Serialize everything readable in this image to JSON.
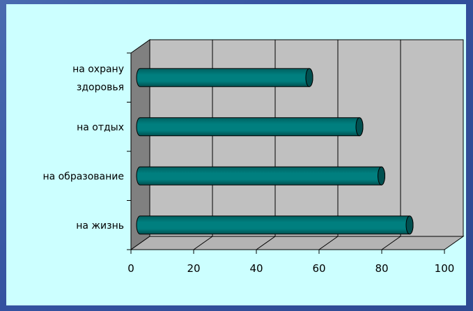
{
  "chart_data": {
    "type": "bar",
    "orientation": "horizontal",
    "style": "3d-cylinder",
    "categories": [
      [
        "на охрану",
        "здоровья"
      ],
      [
        "на отдых"
      ],
      [
        "на образование"
      ],
      [
        "на жизнь"
      ]
    ],
    "values": [
      54,
      70,
      77,
      86
    ],
    "xticks": [
      "0",
      "20",
      "40",
      "60",
      "80",
      "100"
    ],
    "xlim": [
      0,
      100
    ],
    "grid": true,
    "legend": "none",
    "colors": {
      "bar": "#007f7f",
      "bar_dark": "#005050",
      "wall": "#c0c0c0",
      "side_wall": "#808080",
      "floor": "#b4b4b4",
      "background": "#ccffff",
      "frame": "#3b5a9a"
    }
  }
}
